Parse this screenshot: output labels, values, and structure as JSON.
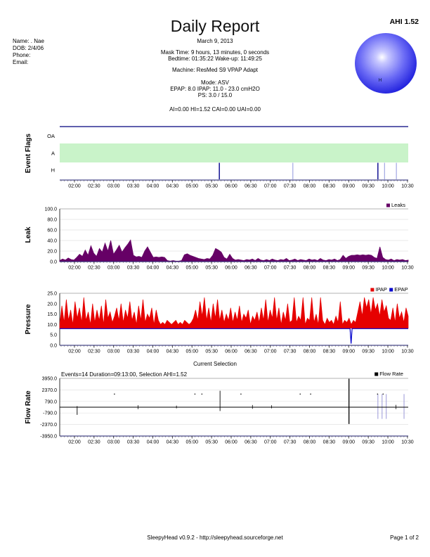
{
  "header": {
    "title": "Daily Report",
    "ahi": "AHI 1.52",
    "date": "March 9, 2013",
    "patient": {
      "name": "Name: . Nae",
      "dob": "DOB: 2/4/06",
      "phone": "Phone:",
      "email": "Email:"
    },
    "mask_time": "Mask Time: 9 hours, 13 minutes, 0 seconds",
    "bedtime": "Bedtime: 01:35:22 Wake-up: 11:49:25",
    "machine": "Machine: ResMed S9 VPAP Adapt",
    "mode": "Mode: ASV",
    "pressure_line": "EPAP: 8.0 IPAP: 11.0 - 23.0 cmH2O",
    "ps_line": "PS: 3.0 / 15.0",
    "indices": "AI=0.00 HI=1.52 CAI=0.00 UAI=0.00",
    "event_pie": {
      "label": "H",
      "color": "#2020dd"
    }
  },
  "footer": {
    "center": "SleepyHead v0.9.2 - http://sleepyhead.sourceforge.net",
    "right": "Page 1 of 2"
  },
  "time_axis": {
    "labels": [
      "02:00",
      "02:30",
      "03:00",
      "03:30",
      "04:00",
      "04:30",
      "05:00",
      "05:30",
      "06:00",
      "06:30",
      "07:00",
      "07:30",
      "08:00",
      "08:30",
      "09:00",
      "09:30",
      "10:00",
      "10:30"
    ]
  },
  "chart_data": [
    {
      "type": "event-flags",
      "title": "Event Flags",
      "rows": [
        "OA",
        "A",
        "H"
      ],
      "band_row": "A",
      "band_color": "#c9f3c9",
      "events": [
        {
          "f": 0.458,
          "strong": true
        },
        {
          "f": 0.669,
          "strong": false
        },
        {
          "f": 0.913,
          "strong": true
        },
        {
          "f": 0.932,
          "strong": false
        },
        {
          "f": 0.966,
          "strong": false
        }
      ]
    },
    {
      "type": "area",
      "title": "Leak",
      "legend": [
        {
          "label": "Leaks",
          "color": "#660066"
        }
      ],
      "ylim": [
        0,
        100
      ],
      "yticks": [
        "100.0",
        "80.0",
        "60.0",
        "40.0",
        "20.0",
        "0.0"
      ],
      "values": [
        2,
        5,
        3,
        7,
        4,
        3,
        8,
        14,
        10,
        22,
        12,
        30,
        16,
        10,
        25,
        18,
        35,
        20,
        40,
        14,
        22,
        31,
        18,
        26,
        33,
        41,
        12,
        9,
        10,
        8,
        20,
        28,
        18,
        8,
        9,
        8,
        9,
        8,
        2,
        1,
        2,
        1,
        1,
        2,
        13,
        15,
        12,
        10,
        8,
        6,
        5,
        4,
        6,
        5,
        12,
        25,
        22,
        18,
        8,
        5,
        14,
        6,
        3,
        4,
        3,
        2,
        4,
        3,
        5,
        2,
        6,
        3,
        2,
        4,
        2,
        5,
        3,
        2,
        4,
        3,
        6,
        2,
        3,
        5,
        2,
        4,
        3,
        2,
        5,
        3,
        4,
        2,
        6,
        3,
        2,
        4,
        3,
        5,
        2,
        4,
        12,
        6,
        10,
        12,
        12,
        13,
        12,
        13,
        12,
        13,
        12,
        8,
        6,
        28,
        8,
        4,
        3,
        5,
        2,
        4,
        3,
        4,
        2,
        3
      ]
    },
    {
      "type": "line",
      "title": "Pressure",
      "legend": [
        {
          "label": "IPAP",
          "color": "#e60000"
        },
        {
          "label": "EPAP",
          "color": "#0000cc"
        }
      ],
      "ylim": [
        0,
        25
      ],
      "yticks": [
        "25.0",
        "20.0",
        "15.0",
        "10.0",
        "5.0",
        "0.0"
      ],
      "series": [
        {
          "name": "IPAP",
          "color": "#e60000",
          "fill_to": 8.2,
          "values": [
            10,
            19,
            11,
            22,
            12,
            17,
            10,
            21,
            13,
            18,
            11,
            23,
            12,
            16,
            10,
            20,
            11,
            17,
            12,
            19,
            10,
            22,
            13,
            16,
            11,
            14,
            18,
            12,
            20,
            11,
            17,
            13,
            21,
            12,
            16,
            10,
            19,
            12,
            22,
            11,
            15,
            13,
            18,
            10,
            17,
            12,
            10,
            11,
            10,
            12,
            11,
            10,
            11,
            12,
            10,
            11,
            10,
            12,
            11,
            10,
            11,
            13,
            17,
            12,
            21,
            14,
            23,
            12,
            18,
            11,
            20,
            13,
            22,
            12,
            17,
            11,
            15,
            12,
            18,
            11,
            16,
            12,
            19,
            11,
            15,
            13,
            17,
            10,
            14,
            12,
            16,
            11,
            18,
            12,
            22,
            11,
            17,
            13,
            23,
            12,
            18,
            10,
            16,
            12,
            20,
            11,
            12,
            23,
            11,
            14,
            12,
            23,
            10,
            13,
            12,
            23,
            11,
            15,
            10,
            23,
            12,
            10,
            13,
            11,
            12,
            10,
            14,
            11,
            21,
            10,
            12,
            11,
            13,
            10,
            12,
            11,
            16,
            21,
            14,
            23,
            18,
            22,
            15,
            23,
            17,
            20,
            14,
            22,
            16,
            19,
            13,
            12,
            18,
            11,
            20,
            13,
            16,
            11,
            18,
            14
          ]
        },
        {
          "name": "EPAP",
          "color": "#0000cc",
          "points": [
            {
              "f": 0.0,
              "v": 8
            },
            {
              "f": 0.833,
              "v": 8
            },
            {
              "f": 0.836,
              "v": 0.8
            },
            {
              "f": 0.839,
              "v": 8
            },
            {
              "f": 1.0,
              "v": 8
            }
          ]
        }
      ]
    },
    {
      "type": "flow",
      "title": "Flow Rate",
      "suptitle": "Current Selection",
      "annotation": "Events=14 Duration=09:13:00, Selection AHI=1.52",
      "legend": [
        {
          "label": "Flow Rate",
          "color": "#000000"
        }
      ],
      "ylim": [
        -3950,
        3950
      ],
      "yticks": [
        "3950.0",
        "2370.0",
        "790.0",
        "-790.0",
        "-2370.0",
        "-3950.0"
      ],
      "baseline": 0,
      "spikes": [
        {
          "f": 0.05,
          "up": 150,
          "dn": -1050,
          "w": 0.9
        },
        {
          "f": 0.225,
          "up": 260,
          "dn": -260,
          "w": 0.8
        },
        {
          "f": 0.335,
          "up": 220,
          "dn": -160,
          "w": 0.8
        },
        {
          "f": 0.46,
          "up": 2250,
          "dn": -520,
          "w": 0.9
        },
        {
          "f": 0.553,
          "up": 300,
          "dn": -220,
          "w": 0.8
        },
        {
          "f": 0.608,
          "up": 260,
          "dn": -160,
          "w": 0.8
        },
        {
          "f": 0.83,
          "up": 3900,
          "dn": -2300,
          "w": 1.3
        },
        {
          "f": 0.965,
          "up": 320,
          "dn": -260,
          "w": 0.8
        }
      ],
      "dots": {
        "value": 1800,
        "fractions": [
          0.157,
          0.388,
          0.408,
          0.52,
          0.69,
          0.72,
          0.912,
          0.928
        ]
      },
      "event_marks": {
        "color": "#9a98d8",
        "from": 1800,
        "to": -1600,
        "fractions": [
          0.913,
          0.925,
          0.937,
          0.988
        ]
      }
    }
  ]
}
